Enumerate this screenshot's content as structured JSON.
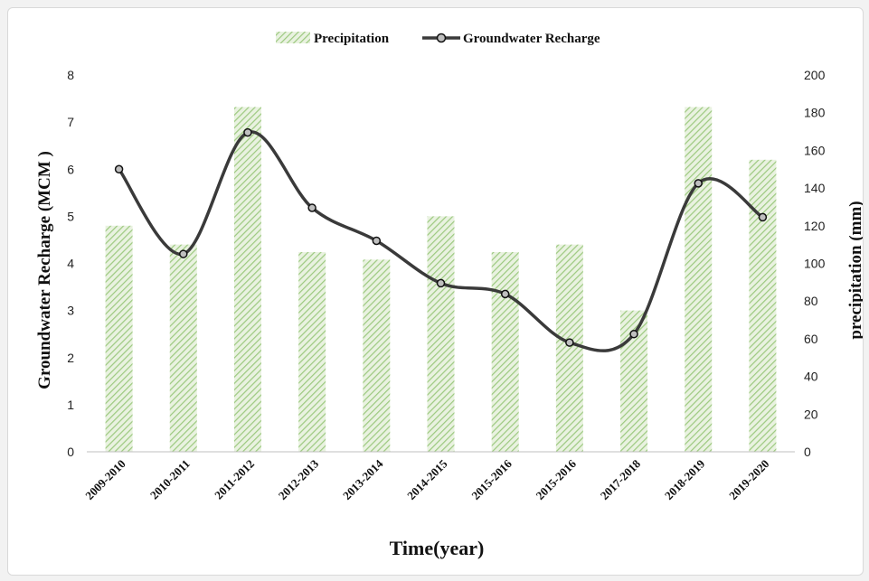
{
  "chart_data": {
    "type": "bar+line",
    "categories": [
      "2009-2010",
      "2010-2011",
      "2011-2012",
      "2012-2013",
      "2013-2014",
      "2014-2015",
      "2015-2016",
      "2015-2016",
      "2017-2018",
      "2018-2019",
      "2019-2020"
    ],
    "series": [
      {
        "name": "Precipitation",
        "type": "bar",
        "axis": "right",
        "values": [
          120,
          110,
          183,
          106,
          102,
          125,
          106,
          110,
          75,
          183,
          155
        ]
      },
      {
        "name": "Groundwater Recharge",
        "type": "line",
        "axis": "left",
        "values": [
          6.0,
          4.2,
          6.78,
          5.18,
          4.48,
          3.58,
          3.35,
          2.32,
          2.5,
          5.7,
          4.98
        ]
      }
    ],
    "xlabel": "Time(year)",
    "ylabel_left": "Groundwater  Recharge (MCM )",
    "ylabel_right": "precipitation  (mm)",
    "ylim_left": [
      0,
      8
    ],
    "ylim_right": [
      0,
      200
    ],
    "yticks_left": [
      "0",
      "1",
      "2",
      "3",
      "4",
      "5",
      "6",
      "7",
      "8"
    ],
    "yticks_right": [
      "0",
      "20",
      "40",
      "60",
      "80",
      "100",
      "120",
      "140",
      "160",
      "180",
      "200"
    ],
    "legend_position": "top-center",
    "grid": false,
    "colors": {
      "bar": "#a9d18e",
      "line": "#3a3a3a",
      "marker_fill": "#bfbfbf"
    }
  }
}
